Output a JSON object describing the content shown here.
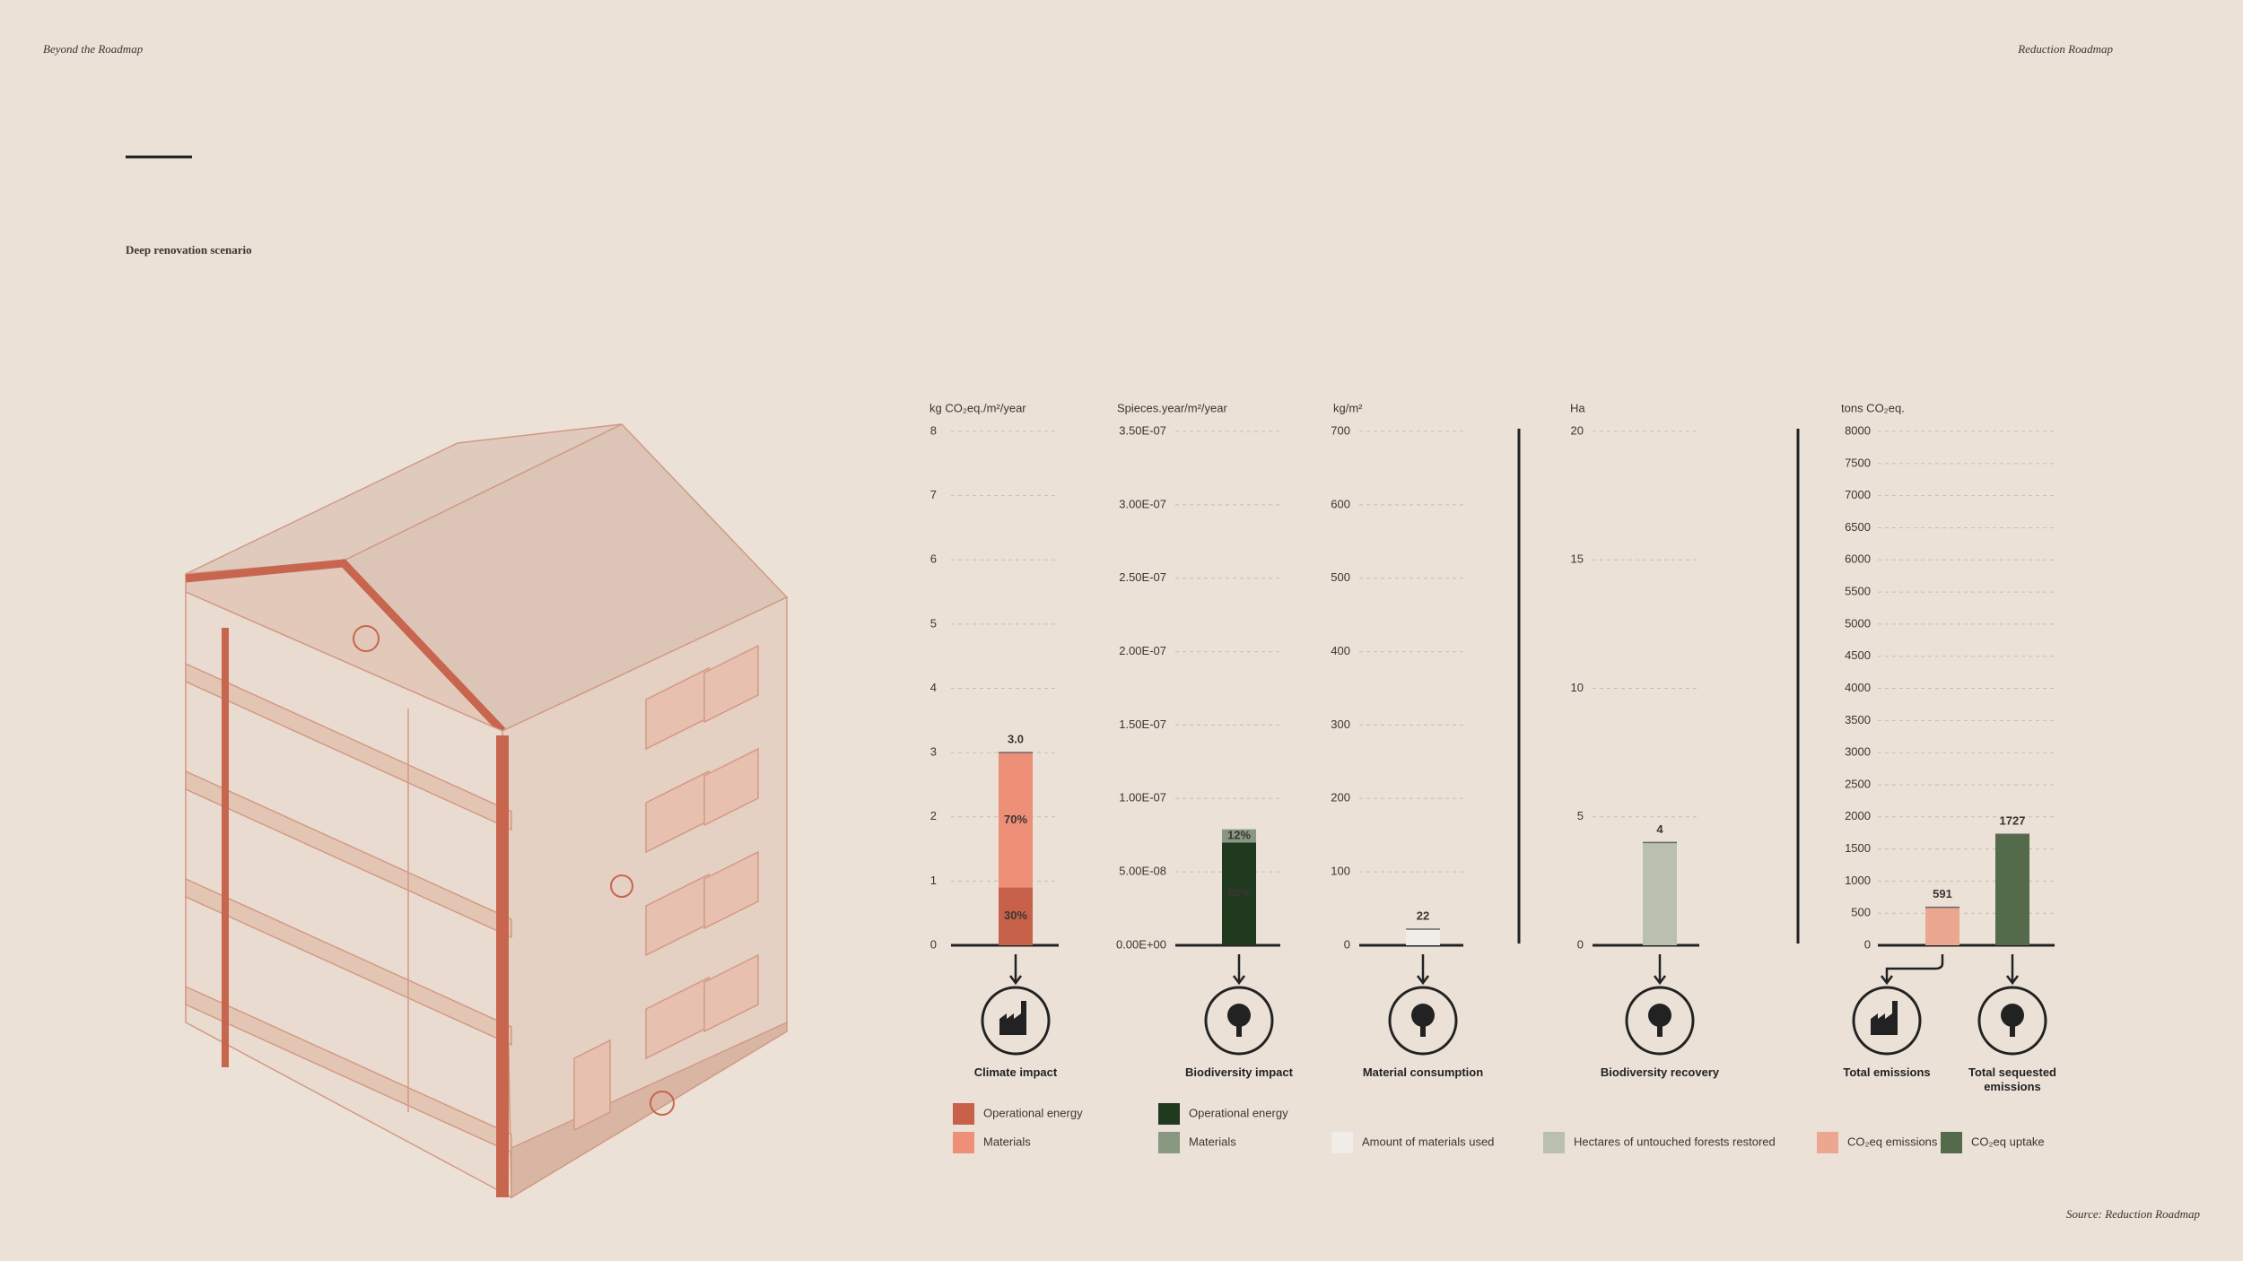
{
  "header": {
    "left": "Beyond the Roadmap",
    "right": "Reduction Roadmap"
  },
  "title": "Deep renovation scenario",
  "source": "Source: Reduction Roadmap",
  "chart_data": [
    {
      "type": "stacked-bar",
      "unit": "kg CO₂eq./m²/year",
      "categories": [
        "Climate impact"
      ],
      "ylim": [
        0,
        8
      ],
      "yticks": [
        0,
        1,
        2,
        3,
        4,
        5,
        6,
        7,
        8
      ],
      "series": [
        {
          "name": "Operational energy",
          "color": "#c8614a",
          "values": [
            0.9
          ],
          "share_labels": [
            "30%"
          ]
        },
        {
          "name": "Materials",
          "color": "#ee8f78",
          "values": [
            2.1
          ],
          "share_labels": [
            "70%"
          ]
        }
      ],
      "total_labels": [
        "3.0"
      ]
    },
    {
      "type": "stacked-bar",
      "unit": "Spieces.year/m²/year",
      "categories": [
        "Biodiversity impact"
      ],
      "ylim": [
        0,
        3.5e-07
      ],
      "yticks": [
        {
          "value": 0,
          "label": "0.00E+00"
        },
        {
          "value": 5e-08,
          "label": "5.00E-08"
        },
        {
          "value": 1e-07,
          "label": "1.00E-07"
        },
        {
          "value": 1.5e-07,
          "label": "1.50E-07"
        },
        {
          "value": 2e-07,
          "label": "2.00E-07"
        },
        {
          "value": 2.5e-07,
          "label": "2.50E-07"
        },
        {
          "value": 3e-07,
          "label": "3.00E-07"
        },
        {
          "value": 3.5e-07,
          "label": "3.50E-07"
        }
      ],
      "series": [
        {
          "name": "Operational energy",
          "color": "#1f3a1f",
          "values": [
            7e-08
          ],
          "share_labels": [
            "88%"
          ]
        },
        {
          "name": "Materials",
          "color": "#889880",
          "values": [
            9e-09
          ],
          "share_labels": [
            "12%"
          ]
        }
      ]
    },
    {
      "type": "bar",
      "unit": "kg/m²",
      "categories": [
        "Material consumption"
      ],
      "ylim": [
        0,
        700
      ],
      "yticks": [
        0,
        100,
        200,
        300,
        400,
        500,
        600,
        700
      ],
      "series": [
        {
          "name": "Amount of materials used",
          "color": "#f0ece7",
          "values": [
            22
          ]
        }
      ]
    },
    {
      "type": "bar",
      "unit": "Ha",
      "categories": [
        "Biodiversity recovery"
      ],
      "ylim": [
        0,
        20
      ],
      "yticks": [
        0,
        5,
        10,
        15,
        20
      ],
      "series": [
        {
          "name": "Hectares of untouched forests restored",
          "color": "#b9c0b0",
          "values": [
            4
          ]
        }
      ]
    },
    {
      "type": "bar",
      "unit": "tons CO₂eq.",
      "categories": [
        "Total emissions",
        "Total sequested emissions"
      ],
      "ylim": [
        0,
        8000
      ],
      "yticks": [
        0,
        500,
        1000,
        1500,
        2000,
        2500,
        3000,
        3500,
        4000,
        4500,
        5000,
        5500,
        6000,
        6500,
        7000,
        7500,
        8000
      ],
      "series": [
        {
          "name": "CO₂eq emissions",
          "color": "#eba78f",
          "values": [
            591,
            null
          ]
        },
        {
          "name": "CO₂eq uptake",
          "color": "#546b4b",
          "values": [
            null,
            1727
          ]
        }
      ]
    }
  ]
}
